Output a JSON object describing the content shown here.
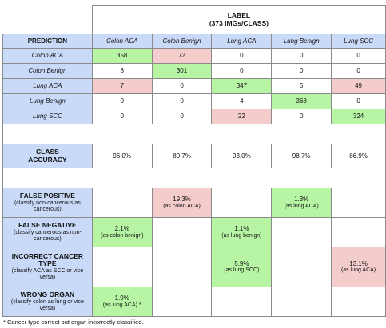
{
  "label_title": "LABEL",
  "label_subtitle": "(373 IMGs/CLASS)",
  "prediction_header": "PREDICTION",
  "columns": [
    "Colon ACA",
    "Colon Benign",
    "Lung ACA",
    "Lung Benign",
    "Lung SCC"
  ],
  "rows": [
    {
      "label": "Colon ACA",
      "values": [
        "358",
        "72",
        "0",
        "0",
        "0"
      ]
    },
    {
      "label": "Colon Benign",
      "values": [
        "8",
        "301",
        "0",
        "0",
        "0"
      ]
    },
    {
      "label": "Lung ACA",
      "values": [
        "7",
        "0",
        "347",
        "5",
        "49"
      ]
    },
    {
      "label": "Lung Benign",
      "values": [
        "0",
        "0",
        "4",
        "368",
        "0"
      ]
    },
    {
      "label": "Lung SCC",
      "values": [
        "0",
        "0",
        "22",
        "0",
        "324"
      ]
    }
  ],
  "class_accuracy": {
    "label_line1": "CLASS",
    "label_line2": "ACCURACY",
    "values": [
      "96.0%",
      "80.7%",
      "93.0%",
      "98.7%",
      "86.9%"
    ]
  },
  "errors": [
    {
      "title": "FALSE POSITIVE",
      "desc": "(classify non-cancerous as cancerous)",
      "cells": [
        "",
        "19.3%|(as colon ACA)",
        "",
        "1.3%|(as lung ACA)",
        ""
      ]
    },
    {
      "title": "FALSE NEGATIVE",
      "desc": "(classify cancerous as non-cancerous)",
      "cells": [
        "2.1%|(as colon benign)",
        "",
        "1.1%|(as lung benign)",
        "",
        ""
      ]
    },
    {
      "title": "INCORRECT CANCER TYPE",
      "desc": "(classify ACA as SCC or vice versa)",
      "cells": [
        "",
        "",
        "5.9%|(as lung SCC)",
        "",
        "13.1%|(as lung ACA)"
      ]
    },
    {
      "title": "WRONG ORGAN",
      "desc": "(classify colon as lung or vice versa)",
      "cells": [
        "1.9%|(as lung ACA) *",
        "",
        "",
        "",
        ""
      ]
    }
  ],
  "footnote": "* Cancer type correct but organ incorrectly classified.",
  "colors": {
    "header": "#c9daf8",
    "green": "#b7f5a5",
    "red": "#f4cccc",
    "border": "#8a8a8a"
  }
}
